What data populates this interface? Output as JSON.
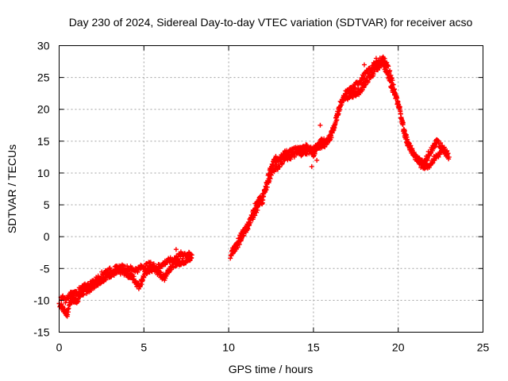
{
  "chart_data": {
    "type": "scatter",
    "title": "Day 230 of 2024, Sidereal Day-to-day VTEC variation (SDTVAR) for receiver acso",
    "xlabel": "GPS time / hours",
    "ylabel": "SDTVAR / TECUs",
    "xlim": [
      0,
      25
    ],
    "ylim": [
      -15,
      30
    ],
    "xticks": [
      0,
      5,
      10,
      15,
      20,
      25
    ],
    "yticks": [
      -15,
      -10,
      -5,
      0,
      5,
      10,
      15,
      20,
      25,
      30
    ],
    "grid": true,
    "marker": "plus",
    "color": "#ff0000",
    "series": [
      {
        "name": "SDTVAR",
        "trace": [
          [
            0.0,
            -10.5
          ],
          [
            0.3,
            -11.5
          ],
          [
            0.5,
            -12.2
          ],
          [
            0.6,
            -10.5
          ],
          [
            0.8,
            -9.8
          ],
          [
            1.0,
            -10.2
          ],
          [
            1.3,
            -9.0
          ],
          [
            1.6,
            -8.5
          ],
          [
            1.9,
            -8.0
          ],
          [
            2.2,
            -7.3
          ],
          [
            2.5,
            -6.8
          ],
          [
            2.8,
            -6.2
          ],
          [
            3.1,
            -5.8
          ],
          [
            3.4,
            -5.6
          ],
          [
            3.7,
            -5.4
          ],
          [
            4.0,
            -5.8
          ],
          [
            4.3,
            -6.3
          ],
          [
            4.5,
            -7.0
          ],
          [
            4.7,
            -7.8
          ],
          [
            4.9,
            -6.8
          ],
          [
            5.1,
            -5.5
          ],
          [
            5.3,
            -5.3
          ],
          [
            5.6,
            -5.0
          ],
          [
            5.9,
            -5.8
          ],
          [
            6.2,
            -6.5
          ],
          [
            6.5,
            -5.0
          ],
          [
            6.8,
            -4.2
          ],
          [
            7.1,
            -4.0
          ],
          [
            7.4,
            -3.8
          ],
          [
            7.7,
            -3.5
          ],
          [
            7.85,
            -3.2
          ],
          [
            10.1,
            -3.0
          ],
          [
            10.3,
            -2.0
          ],
          [
            10.6,
            -1.0
          ],
          [
            10.9,
            0.5
          ],
          [
            11.2,
            2.0
          ],
          [
            11.4,
            3.5
          ],
          [
            11.6,
            5.0
          ],
          [
            11.8,
            6.0
          ],
          [
            12.0,
            5.5
          ],
          [
            12.2,
            8.0
          ],
          [
            12.4,
            10.0
          ],
          [
            12.7,
            12.0
          ],
          [
            13.0,
            12.5
          ],
          [
            13.3,
            13.0
          ],
          [
            13.6,
            13.3
          ],
          [
            13.9,
            13.5
          ],
          [
            14.2,
            13.7
          ],
          [
            14.5,
            14.0
          ],
          [
            14.7,
            14.2
          ],
          [
            15.0,
            13.0
          ],
          [
            15.2,
            14.0
          ],
          [
            15.5,
            15.0
          ],
          [
            15.8,
            15.0
          ],
          [
            16.0,
            15.5
          ],
          [
            16.2,
            17.0
          ],
          [
            16.4,
            19.0
          ],
          [
            16.6,
            21.0
          ],
          [
            16.8,
            22.0
          ],
          [
            17.0,
            22.0
          ],
          [
            17.3,
            22.3
          ],
          [
            17.5,
            22.5
          ],
          [
            17.8,
            23.0
          ],
          [
            18.0,
            24.0
          ],
          [
            18.3,
            25.0
          ],
          [
            18.6,
            26.0
          ],
          [
            18.9,
            27.0
          ],
          [
            19.1,
            27.5
          ],
          [
            19.3,
            26.0
          ],
          [
            19.5,
            24.5
          ],
          [
            19.7,
            23.0
          ],
          [
            19.9,
            21.5
          ],
          [
            20.1,
            20.0
          ],
          [
            20.3,
            17.0
          ],
          [
            20.5,
            15.0
          ],
          [
            20.7,
            14.0
          ],
          [
            20.9,
            13.0
          ],
          [
            21.2,
            12.0
          ],
          [
            21.5,
            11.5
          ],
          [
            21.7,
            12.5
          ],
          [
            21.9,
            13.5
          ],
          [
            22.1,
            14.0
          ],
          [
            22.3,
            15.0
          ],
          [
            22.6,
            14.0
          ],
          [
            22.9,
            13.0
          ]
        ],
        "alt_trace": [
          [
            0.1,
            -9.5
          ],
          [
            0.4,
            -10.0
          ],
          [
            0.7,
            -9.0
          ],
          [
            1.0,
            -8.8
          ],
          [
            1.4,
            -8.0
          ],
          [
            1.8,
            -7.5
          ],
          [
            2.3,
            -6.5
          ],
          [
            2.7,
            -5.5
          ],
          [
            3.2,
            -5.2
          ],
          [
            3.6,
            -4.8
          ],
          [
            4.1,
            -5.0
          ],
          [
            4.6,
            -5.2
          ],
          [
            5.0,
            -4.6
          ],
          [
            5.4,
            -4.4
          ],
          [
            5.8,
            -4.8
          ],
          [
            6.3,
            -4.0
          ],
          [
            6.8,
            -3.5
          ],
          [
            7.3,
            -2.6
          ],
          [
            7.8,
            -3.0
          ],
          [
            10.2,
            -2.0
          ],
          [
            10.6,
            -0.5
          ],
          [
            11.0,
            1.5
          ],
          [
            11.4,
            3.0
          ],
          [
            11.7,
            4.5
          ],
          [
            12.1,
            7.0
          ],
          [
            12.4,
            9.0
          ],
          [
            12.6,
            10.5
          ],
          [
            12.9,
            11.0
          ],
          [
            13.2,
            12.0
          ],
          [
            13.6,
            12.5
          ],
          [
            14.0,
            13.0
          ],
          [
            14.4,
            13.2
          ],
          [
            14.8,
            13.5
          ],
          [
            15.3,
            14.2
          ],
          [
            15.7,
            14.5
          ],
          [
            16.1,
            16.5
          ],
          [
            16.5,
            20.0
          ],
          [
            16.9,
            22.5
          ],
          [
            17.4,
            23.5
          ],
          [
            17.9,
            25.0
          ],
          [
            18.4,
            26.5
          ],
          [
            18.8,
            27.5
          ],
          [
            19.2,
            28.0
          ],
          [
            19.6,
            25.0
          ],
          [
            20.2,
            18.5
          ],
          [
            20.6,
            14.5
          ],
          [
            21.0,
            12.5
          ],
          [
            21.4,
            11.0
          ],
          [
            21.8,
            11.2
          ],
          [
            22.2,
            12.5
          ],
          [
            22.7,
            13.5
          ],
          [
            23.0,
            12.5
          ]
        ],
        "extra_points": [
          [
            6.9,
            -2.0
          ],
          [
            15.2,
            12.0
          ],
          [
            15.4,
            17.5
          ],
          [
            14.9,
            11.0
          ],
          [
            18.0,
            27.0
          ],
          [
            18.7,
            28.0
          ]
        ]
      }
    ]
  }
}
